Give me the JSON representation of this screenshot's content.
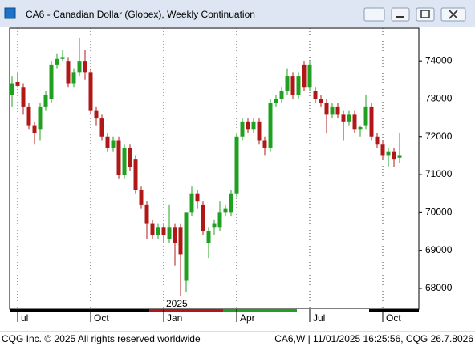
{
  "window_title": "CA6 - Canadian Dollar (Globex), Weekly Continuation",
  "footer_left": "CQG Inc. © 2025 All rights reserved worldwide",
  "footer_right": "CA6,W | 11/01/2025 16:25:56, CQG 26.7.8026",
  "chart_data": {
    "type": "candlestick",
    "year_label": "2025",
    "categories": [
      null,
      "ul",
      null,
      null,
      null,
      null,
      null,
      null,
      null,
      null,
      null,
      null,
      null,
      null,
      "Oct",
      null,
      null,
      null,
      null,
      null,
      null,
      null,
      null,
      null,
      null,
      null,
      null,
      "Jan",
      null,
      null,
      null,
      null,
      null,
      null,
      null,
      null,
      null,
      null,
      null,
      null,
      "Apr",
      null,
      null,
      null,
      null,
      null,
      null,
      null,
      null,
      null,
      null,
      null,
      null,
      "Jul",
      null,
      null,
      null,
      null,
      null,
      null,
      null,
      null,
      null,
      null,
      null,
      null,
      "Oct",
      null,
      null,
      null
    ],
    "open": [
      73100,
      73450,
      73300,
      72800,
      72300,
      72200,
      72800,
      73000,
      73900,
      74050,
      74000,
      73400,
      73700,
      74000,
      73700,
      72700,
      72500,
      72000,
      71700,
      71900,
      71000,
      71700,
      71400,
      70600,
      70200,
      69700,
      69400,
      69600,
      69300,
      69600,
      69600,
      68200,
      70000,
      70500,
      70200,
      69200,
      69600,
      69600,
      70000,
      70000,
      70500,
      72000,
      72400,
      72200,
      72400,
      71900,
      71700,
      72900,
      73000,
      73200,
      73600,
      73100,
      73900,
      73300,
      73200,
      73000,
      72900,
      72600,
      72800,
      72600,
      72400,
      72600,
      72200,
      72300,
      72800,
      72000,
      71800,
      71500,
      71600,
      71450
    ],
    "high": [
      73600,
      73700,
      73400,
      72900,
      72400,
      72900,
      73200,
      74000,
      74200,
      74300,
      74100,
      73800,
      74600,
      74300,
      73800,
      72800,
      72600,
      72100,
      72000,
      72000,
      71800,
      71800,
      71500,
      70700,
      70300,
      69800,
      69700,
      69700,
      70200,
      69700,
      69700,
      70000,
      70700,
      70600,
      70300,
      69600,
      69800,
      70300,
      70200,
      70600,
      72100,
      72500,
      72500,
      72500,
      72500,
      72000,
      73000,
      73100,
      73300,
      73800,
      73700,
      73700,
      74000,
      74000,
      73300,
      73100,
      73000,
      72900,
      72900,
      72700,
      72700,
      72700,
      72300,
      73100,
      72900,
      72100,
      71900,
      71700,
      71700,
      72100
    ],
    "low": [
      72800,
      73300,
      72600,
      72200,
      71800,
      71900,
      72700,
      72900,
      73800,
      74000,
      73300,
      73300,
      73600,
      73500,
      72600,
      72300,
      71900,
      71600,
      71600,
      70900,
      70900,
      71100,
      70500,
      70100,
      69300,
      69300,
      69300,
      69200,
      69200,
      68600,
      67800,
      67900,
      69900,
      70100,
      69400,
      68800,
      69400,
      69500,
      69900,
      69900,
      70400,
      71900,
      72100,
      72100,
      71800,
      71500,
      71600,
      72800,
      72900,
      73100,
      73000,
      73000,
      73200,
      73200,
      72900,
      72800,
      72100,
      72500,
      72500,
      71900,
      72300,
      72100,
      72000,
      72200,
      71900,
      71700,
      71400,
      71200,
      71200,
      71300
    ],
    "close": [
      73400,
      73350,
      72800,
      72300,
      72100,
      72800,
      73100,
      73900,
      74050,
      74100,
      73400,
      73700,
      74000,
      73700,
      72700,
      72500,
      72000,
      71700,
      71900,
      71000,
      71700,
      71200,
      70600,
      70200,
      69700,
      69400,
      69600,
      69400,
      69600,
      69200,
      68900,
      70000,
      70500,
      70300,
      69500,
      69500,
      69700,
      70000,
      70100,
      70500,
      72000,
      72400,
      72200,
      72400,
      71900,
      71700,
      72900,
      73000,
      73200,
      73600,
      73100,
      73600,
      73300,
      73900,
      73000,
      72900,
      72600,
      72800,
      72600,
      72400,
      72600,
      72200,
      72250,
      72800,
      72000,
      71800,
      71500,
      71600,
      71400,
      71500
    ],
    "up_color": "#20a020",
    "down_color": "#b01818",
    "ylim": [
      67450,
      74870
    ],
    "yticks": [
      68000,
      69000,
      70000,
      71000,
      72000,
      73000,
      74000
    ],
    "grid": "vertical"
  }
}
